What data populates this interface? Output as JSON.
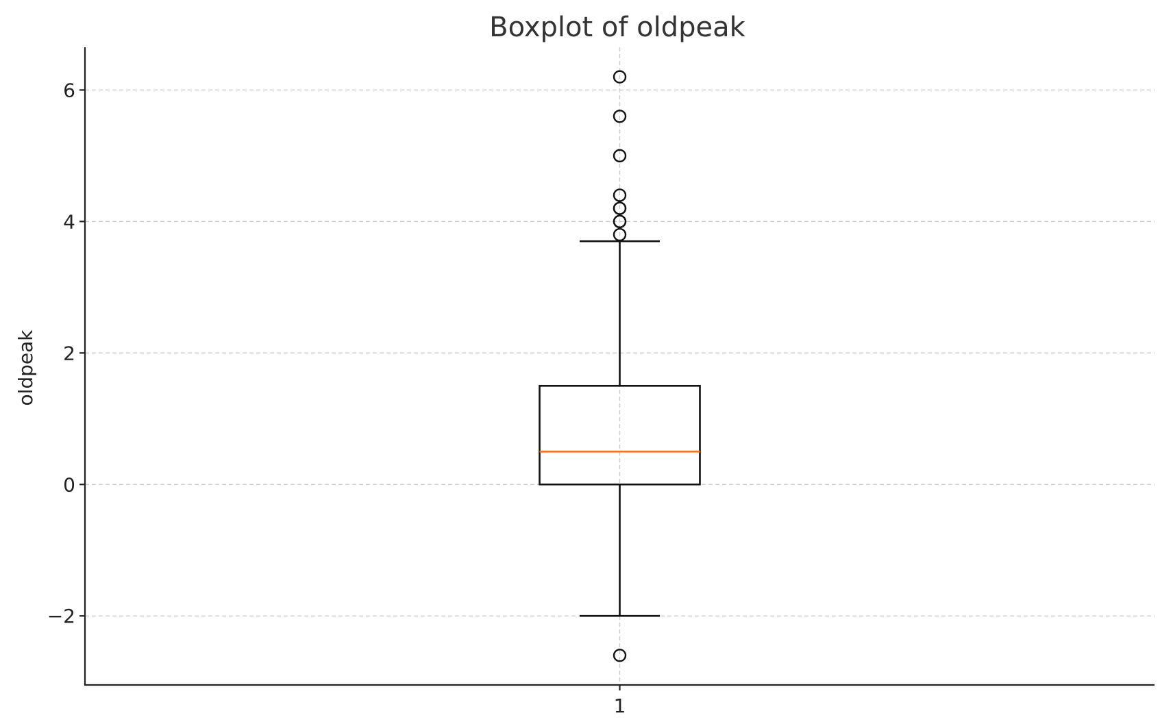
{
  "chart_data": {
    "type": "box",
    "title": "Boxplot of oldpeak",
    "xlabel": "",
    "ylabel": "oldpeak",
    "categories": [
      "1"
    ],
    "ylim": [
      -3.05,
      6.65
    ],
    "yticks": [
      -2,
      0,
      2,
      4,
      6
    ],
    "ytick_labels": [
      "−2",
      "0",
      "2",
      "4",
      "6"
    ],
    "grid": true,
    "boxes": [
      {
        "category": "1",
        "whisker_low": -2.0,
        "q1": 0.0,
        "median": 0.5,
        "q3": 1.5,
        "whisker_high": 3.7,
        "fliers": [
          6.2,
          5.6,
          5.0,
          4.4,
          4.2,
          4.2,
          4.0,
          4.0,
          3.8,
          -2.6
        ]
      }
    ],
    "colors": {
      "median": "#f07522",
      "box": "#111111",
      "grid": "#c8c8c8"
    }
  }
}
